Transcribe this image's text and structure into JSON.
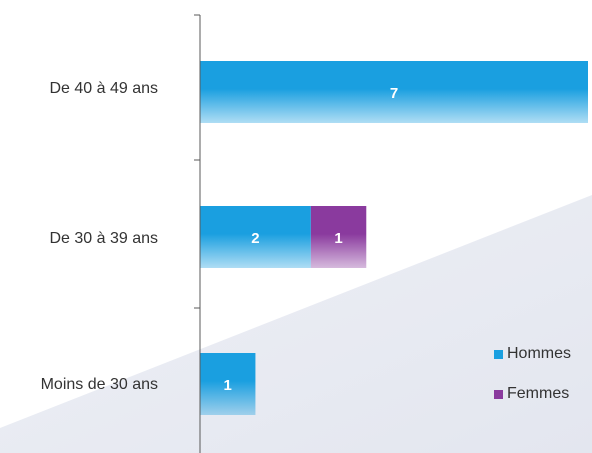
{
  "chart_data": {
    "type": "bar",
    "orientation": "horizontal",
    "stacked": true,
    "categories": [
      "De 40 à 49 ans",
      "De 30 à 39 ans",
      "Moins de 30 ans"
    ],
    "series": [
      {
        "name": "Hommes",
        "values": [
          7,
          2,
          1
        ],
        "color": "#1a9fe0"
      },
      {
        "name": "Femmes",
        "values": [
          0,
          1,
          0
        ],
        "color": "#8a3a9e"
      }
    ],
    "xlim": [
      0,
      7
    ],
    "grid": false,
    "legend_position": "bottom-right",
    "title": "",
    "xlabel": "",
    "ylabel": ""
  },
  "colors": {
    "hommes": "#1a9fe0",
    "femmes": "#8a3a9e",
    "axis": "#595959",
    "bar_label": "#ffffff"
  }
}
